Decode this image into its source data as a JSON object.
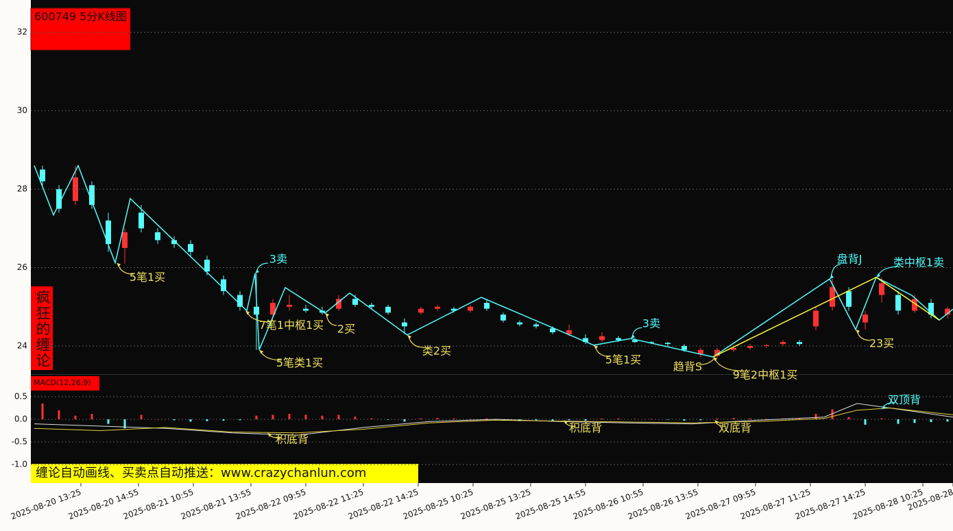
{
  "banner": "缠论自动画线、买卖点自动推送：www.crazychanlun.com",
  "chart_data": [
    {
      "type": "candlestick",
      "title": "600749 5分K线图",
      "side_label": "疯狂的缠论",
      "up_color": "#ff3232",
      "down_color": "#54fcfc",
      "grid": true,
      "xlim": [
        0,
        335
      ],
      "ylim": [
        23.3,
        32.65
      ],
      "yticks": [
        24,
        26,
        28,
        30,
        32
      ],
      "candles": [
        {
          "x": 3,
          "open": 28.5,
          "high": 28.6,
          "low": 28.1,
          "close": 28.2
        },
        {
          "x": 9,
          "open": 28.0,
          "high": 28.1,
          "low": 27.4,
          "close": 27.5
        },
        {
          "x": 15,
          "open": 27.7,
          "high": 28.6,
          "low": 27.6,
          "close": 28.3
        },
        {
          "x": 21,
          "open": 28.1,
          "high": 28.2,
          "low": 27.5,
          "close": 27.6
        },
        {
          "x": 27,
          "open": 27.2,
          "high": 27.4,
          "low": 26.4,
          "close": 26.6
        },
        {
          "x": 33,
          "open": 26.5,
          "high": 27.0,
          "low": 26.1,
          "close": 26.9
        },
        {
          "x": 39,
          "open": 27.4,
          "high": 27.6,
          "low": 26.9,
          "close": 27.0
        },
        {
          "x": 45,
          "open": 26.9,
          "high": 27.0,
          "low": 26.6,
          "close": 26.7
        },
        {
          "x": 51,
          "open": 26.7,
          "high": 26.8,
          "low": 26.5,
          "close": 26.6
        },
        {
          "x": 57,
          "open": 26.6,
          "high": 26.7,
          "low": 26.3,
          "close": 26.4
        },
        {
          "x": 63,
          "open": 26.2,
          "high": 26.3,
          "low": 25.8,
          "close": 25.9
        },
        {
          "x": 69,
          "open": 25.7,
          "high": 25.8,
          "low": 25.3,
          "close": 25.4
        },
        {
          "x": 75,
          "open": 25.3,
          "high": 25.4,
          "low": 24.9,
          "close": 25.0
        },
        {
          "x": 81,
          "open": 25.0,
          "high": 25.85,
          "low": 23.9,
          "close": 24.8
        },
        {
          "x": 87,
          "open": 24.8,
          "high": 25.2,
          "low": 24.7,
          "close": 25.1
        },
        {
          "x": 93,
          "open": 25.0,
          "high": 25.3,
          "low": 24.9,
          "close": 25.05
        },
        {
          "x": 99,
          "open": 24.95,
          "high": 25.05,
          "low": 24.85,
          "close": 24.9
        },
        {
          "x": 105,
          "open": 24.9,
          "high": 25.0,
          "low": 24.8,
          "close": 24.85
        },
        {
          "x": 111,
          "open": 24.95,
          "high": 25.3,
          "low": 24.9,
          "close": 25.2
        },
        {
          "x": 117,
          "open": 25.2,
          "high": 25.3,
          "low": 25.0,
          "close": 25.05
        },
        {
          "x": 123,
          "open": 25.05,
          "high": 25.1,
          "low": 24.95,
          "close": 25.0
        },
        {
          "x": 129,
          "open": 25.0,
          "high": 25.05,
          "low": 24.8,
          "close": 24.85
        },
        {
          "x": 135,
          "open": 24.6,
          "high": 24.7,
          "low": 24.3,
          "close": 24.5
        },
        {
          "x": 141,
          "open": 24.85,
          "high": 25.0,
          "low": 24.8,
          "close": 24.95
        },
        {
          "x": 147,
          "open": 24.95,
          "high": 25.05,
          "low": 24.9,
          "close": 25.0
        },
        {
          "x": 153,
          "open": 24.95,
          "high": 25.0,
          "low": 24.85,
          "close": 24.9
        },
        {
          "x": 159,
          "open": 24.9,
          "high": 25.05,
          "low": 24.85,
          "close": 25.0
        },
        {
          "x": 165,
          "open": 25.1,
          "high": 25.2,
          "low": 24.9,
          "close": 24.95
        },
        {
          "x": 171,
          "open": 24.8,
          "high": 24.85,
          "low": 24.6,
          "close": 24.65
        },
        {
          "x": 177,
          "open": 24.6,
          "high": 24.65,
          "low": 24.5,
          "close": 24.55
        },
        {
          "x": 183,
          "open": 24.55,
          "high": 24.6,
          "low": 24.45,
          "close": 24.5
        },
        {
          "x": 189,
          "open": 24.45,
          "high": 24.5,
          "low": 24.3,
          "close": 24.35
        },
        {
          "x": 195,
          "open": 24.3,
          "high": 24.55,
          "low": 24.25,
          "close": 24.4
        },
        {
          "x": 201,
          "open": 24.2,
          "high": 24.3,
          "low": 24.05,
          "close": 24.1
        },
        {
          "x": 207,
          "open": 24.15,
          "high": 24.35,
          "low": 24.1,
          "close": 24.25
        },
        {
          "x": 213,
          "open": 24.2,
          "high": 24.25,
          "low": 24.1,
          "close": 24.15
        },
        {
          "x": 219,
          "open": 24.15,
          "high": 24.2,
          "low": 24.08,
          "close": 24.1
        },
        {
          "x": 225,
          "open": 24.1,
          "high": 24.12,
          "low": 24.05,
          "close": 24.08
        },
        {
          "x": 231,
          "open": 24.08,
          "high": 24.1,
          "low": 24.0,
          "close": 24.05
        },
        {
          "x": 237,
          "open": 24.0,
          "high": 24.05,
          "low": 23.85,
          "close": 23.9
        },
        {
          "x": 243,
          "open": 23.8,
          "high": 23.95,
          "low": 23.72,
          "close": 23.9
        },
        {
          "x": 249,
          "open": 23.75,
          "high": 23.95,
          "low": 23.7,
          "close": 23.9
        },
        {
          "x": 255,
          "open": 23.9,
          "high": 24.0,
          "low": 23.85,
          "close": 23.95
        },
        {
          "x": 261,
          "open": 23.95,
          "high": 24.05,
          "low": 23.9,
          "close": 24.0
        },
        {
          "x": 267,
          "open": 24.0,
          "high": 24.05,
          "low": 23.95,
          "close": 24.02
        },
        {
          "x": 273,
          "open": 24.05,
          "high": 24.15,
          "low": 24.0,
          "close": 24.1
        },
        {
          "x": 279,
          "open": 24.1,
          "high": 24.15,
          "low": 24.0,
          "close": 24.05
        },
        {
          "x": 285,
          "open": 24.5,
          "high": 25.0,
          "low": 24.4,
          "close": 24.9
        },
        {
          "x": 291,
          "open": 25.0,
          "high": 25.71,
          "low": 24.9,
          "close": 25.5
        },
        {
          "x": 297,
          "open": 25.4,
          "high": 25.5,
          "low": 24.9,
          "close": 25.0
        },
        {
          "x": 303,
          "open": 24.6,
          "high": 24.9,
          "low": 24.42,
          "close": 24.8
        },
        {
          "x": 309,
          "open": 25.3,
          "high": 25.75,
          "low": 25.1,
          "close": 25.6
        },
        {
          "x": 315,
          "open": 25.3,
          "high": 25.4,
          "low": 24.8,
          "close": 24.9
        },
        {
          "x": 321,
          "open": 24.9,
          "high": 25.3,
          "low": 24.85,
          "close": 25.2
        },
        {
          "x": 327,
          "open": 25.1,
          "high": 25.2,
          "low": 24.7,
          "close": 24.8
        },
        {
          "x": 333,
          "open": 24.8,
          "high": 25.0,
          "low": 24.7,
          "close": 24.95
        }
      ],
      "lines": [
        {
          "color": "#54fcfc",
          "x": [
            0,
            7,
            16,
            29.5,
            35,
            77.5,
            80.5,
            82,
            91.5,
            106,
            115,
            136,
            163,
            204,
            217.5,
            247.5,
            290,
            299.5,
            307,
            320,
            330,
            335
          ],
          "values": [
            28.6,
            27.34,
            28.6,
            26.12,
            27.76,
            24.9,
            25.85,
            23.9,
            25.49,
            24.84,
            25.35,
            24.28,
            25.24,
            24.02,
            24.19,
            23.72,
            25.71,
            24.42,
            25.75,
            25.29,
            24.66,
            24.94
          ]
        },
        {
          "color": "#ffff33",
          "x": [
            247.5,
            307,
            330
          ],
          "values": [
            23.72,
            25.75,
            24.66
          ]
        }
      ],
      "annotations": [
        {
          "text": "5笔1买",
          "x": 30,
          "y": 26.12,
          "color": "#f0e060"
        },
        {
          "text": "3卖",
          "x": 80.5,
          "y": 25.85,
          "color": "#54fcfc"
        },
        {
          "text": "7笔1中枢1买",
          "x": 77,
          "y": 24.9,
          "color": "#f0e060"
        },
        {
          "text": "5笔类1买",
          "x": 82,
          "y": 23.9,
          "color": "#f0e060"
        },
        {
          "text": "2买",
          "x": 106,
          "y": 24.84,
          "color": "#f0e060"
        },
        {
          "text": "类2买",
          "x": 136,
          "y": 24.28,
          "color": "#f0e060"
        },
        {
          "text": "5笔1买",
          "x": 204,
          "y": 24.02,
          "color": "#f0e060"
        },
        {
          "text": "3卖",
          "x": 217.5,
          "y": 24.19,
          "color": "#54fcfc"
        },
        {
          "text": "趋背S",
          "x": 247.5,
          "y": 23.72,
          "color": "#f0e060"
        },
        {
          "text": "9笔2中枢1买",
          "x": 247.5,
          "y": 23.72,
          "color": "#f0e060"
        },
        {
          "text": "盘背J",
          "x": 290,
          "y": 25.71,
          "color": "#54fcfc"
        },
        {
          "text": "类中枢1卖",
          "x": 307,
          "y": 25.75,
          "color": "#54fcfc"
        },
        {
          "text": "23买",
          "x": 299.5,
          "y": 24.42,
          "color": "#f0e060"
        }
      ]
    },
    {
      "type": "macd",
      "title": "MACD(12,26,9)",
      "grid": true,
      "up_color": "#ff3232",
      "down_color": "#54fcfc",
      "xlim": [
        0,
        335
      ],
      "ylim": [
        -1.41,
        0.97
      ],
      "yticks": [
        0.5,
        {
          "value": 0,
          "label": "0.0"
        },
        -0.5,
        {
          "value": -1,
          "label": "-1.0"
        }
      ],
      "xticks": [
        {
          "value": 17,
          "label": "2025-08-20 13:25"
        },
        {
          "value": 38,
          "label": "2025-08-20 14:55"
        },
        {
          "value": 58,
          "label": "2025-08-21 10:55"
        },
        {
          "value": 79,
          "label": "2025-08-21 13:55"
        },
        {
          "value": 99,
          "label": "2025-08-22 09:55"
        },
        {
          "value": 120,
          "label": "2025-08-22 11:25"
        },
        {
          "value": 140,
          "label": "2025-08-22 14:25"
        },
        {
          "value": 160,
          "label": "2025-08-25 10:25"
        },
        {
          "value": 181,
          "label": "2025-08-25 13:25"
        },
        {
          "value": 201,
          "label": "2025-08-25 14:55"
        },
        {
          "value": 222,
          "label": "2025-08-26 10:55"
        },
        {
          "value": 242,
          "label": "2025-08-26 13:55"
        },
        {
          "value": 263,
          "label": "2025-08-27 09:55"
        },
        {
          "value": 283,
          "label": "2025-08-27 11:25"
        },
        {
          "value": 303,
          "label": "2025-08-27 14:25"
        },
        {
          "value": 324,
          "label": "2025-08-28 10:25"
        },
        {
          "value": 335,
          "label": "2025-08-28"
        }
      ],
      "hist_x": [
        3,
        9,
        15,
        21,
        27,
        33,
        39,
        45,
        51,
        57,
        63,
        69,
        75,
        81,
        87,
        93,
        99,
        105,
        111,
        117,
        123,
        129,
        135,
        141,
        147,
        153,
        159,
        165,
        171,
        177,
        183,
        189,
        195,
        201,
        207,
        213,
        219,
        225,
        231,
        237,
        243,
        249,
        255,
        261,
        267,
        273,
        279,
        285,
        291,
        297,
        303,
        309,
        315,
        321,
        327,
        333
      ],
      "hist": [
        0.35,
        0.2,
        0.08,
        0.12,
        -0.1,
        -0.2,
        0.1,
        0.0,
        -0.02,
        -0.05,
        -0.04,
        -0.03,
        -0.02,
        0.08,
        0.1,
        0.12,
        0.1,
        0.08,
        0.1,
        0.06,
        0.02,
        -0.01,
        -0.05,
        0.02,
        0.03,
        0.02,
        0.01,
        0.02,
        -0.03,
        -0.04,
        -0.02,
        -0.03,
        -0.02,
        -0.03,
        0.02,
        0.02,
        0.01,
        0.01,
        -0.01,
        -0.03,
        -0.02,
        0.02,
        0.03,
        0.02,
        0.01,
        0.02,
        0.03,
        0.12,
        0.22,
        0.05,
        -0.12,
        0.02,
        -0.1,
        -0.08,
        -0.06,
        -0.05
      ],
      "lines": [
        {
          "color": "#e0e0e0",
          "x": [
            0,
            24,
            48,
            72,
            96,
            120,
            144,
            168,
            192,
            216,
            240,
            264,
            288,
            300,
            312,
            335
          ],
          "values": [
            -0.1,
            -0.15,
            -0.2,
            -0.3,
            -0.35,
            -0.18,
            -0.05,
            0.0,
            -0.05,
            -0.08,
            -0.1,
            -0.02,
            0.05,
            0.35,
            0.25,
            0.05
          ]
        },
        {
          "color": "#e8d040",
          "x": [
            0,
            24,
            48,
            72,
            96,
            120,
            144,
            168,
            192,
            216,
            240,
            264,
            288,
            300,
            312,
            335
          ],
          "values": [
            -0.2,
            -0.25,
            -0.18,
            -0.28,
            -0.3,
            -0.22,
            -0.08,
            -0.02,
            -0.04,
            -0.06,
            -0.08,
            -0.05,
            0.02,
            0.2,
            0.25,
            0.1
          ]
        }
      ],
      "annotations": [
        {
          "text": "积底背",
          "x": 85,
          "y": -0.3,
          "color": "#f0e060"
        },
        {
          "text": "积底背",
          "x": 193,
          "y": -0.02,
          "color": "#f0e060"
        },
        {
          "text": "双底背",
          "x": 248,
          "y": -0.02,
          "color": "#f0e060"
        },
        {
          "text": "双顶背",
          "x": 309,
          "y": 0.22,
          "color": "#54fcfc"
        }
      ]
    }
  ]
}
